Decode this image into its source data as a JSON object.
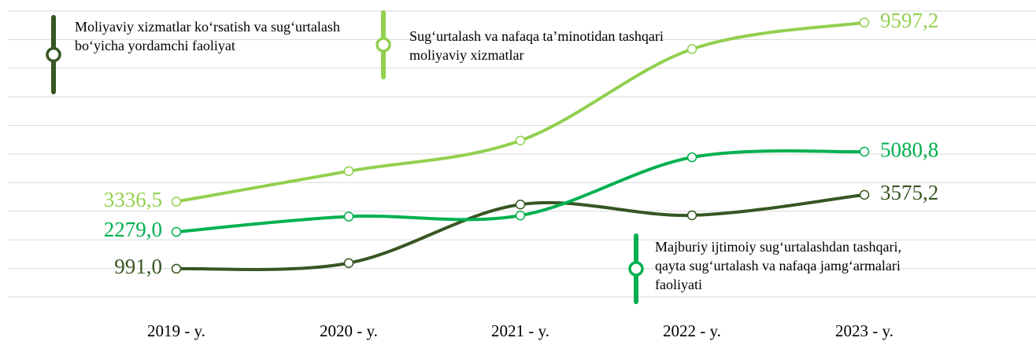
{
  "chart_data": {
    "type": "line",
    "categories": [
      "2019 - y.",
      "2020 - y.",
      "2021 - y.",
      "2022 - y.",
      "2023 - y."
    ],
    "series": [
      {
        "name": "Moliyaviy xizmatlar ko‘rsatish va sug‘urtalash bo‘yicha yordamchi faoliyat",
        "color": "#375623",
        "values": [
          991.0,
          1188,
          3235,
          2858,
          3575.2
        ],
        "value_labels": [
          "991,0",
          null,
          null,
          null,
          "3575,2"
        ]
      },
      {
        "name": "Sug‘urtalash va nafaqa ta’minotidan tashqari moliyaviy xizmatlar",
        "color": "#92d050",
        "values": [
          3336.5,
          4403,
          5470,
          8668,
          9597.2
        ],
        "value_labels": [
          "3336,5",
          null,
          null,
          null,
          "9597,2"
        ]
      },
      {
        "name": "Majburiy ijtimoiy sug‘urtalashdan tashqari, qayta sug‘urtalash va nafaqa jamg‘armalari faoliyati",
        "color": "#00b050",
        "values": [
          2279.0,
          2815,
          2850,
          4885,
          5080.8
        ],
        "value_labels": [
          "2279,0",
          null,
          null,
          null,
          "5080,8"
        ]
      }
    ],
    "ylim": [
      0,
      10000
    ],
    "yticks": [
      0,
      1000,
      2000,
      3000,
      4000,
      5000,
      6000,
      7000,
      8000,
      9000,
      10000
    ],
    "grid": true
  }
}
